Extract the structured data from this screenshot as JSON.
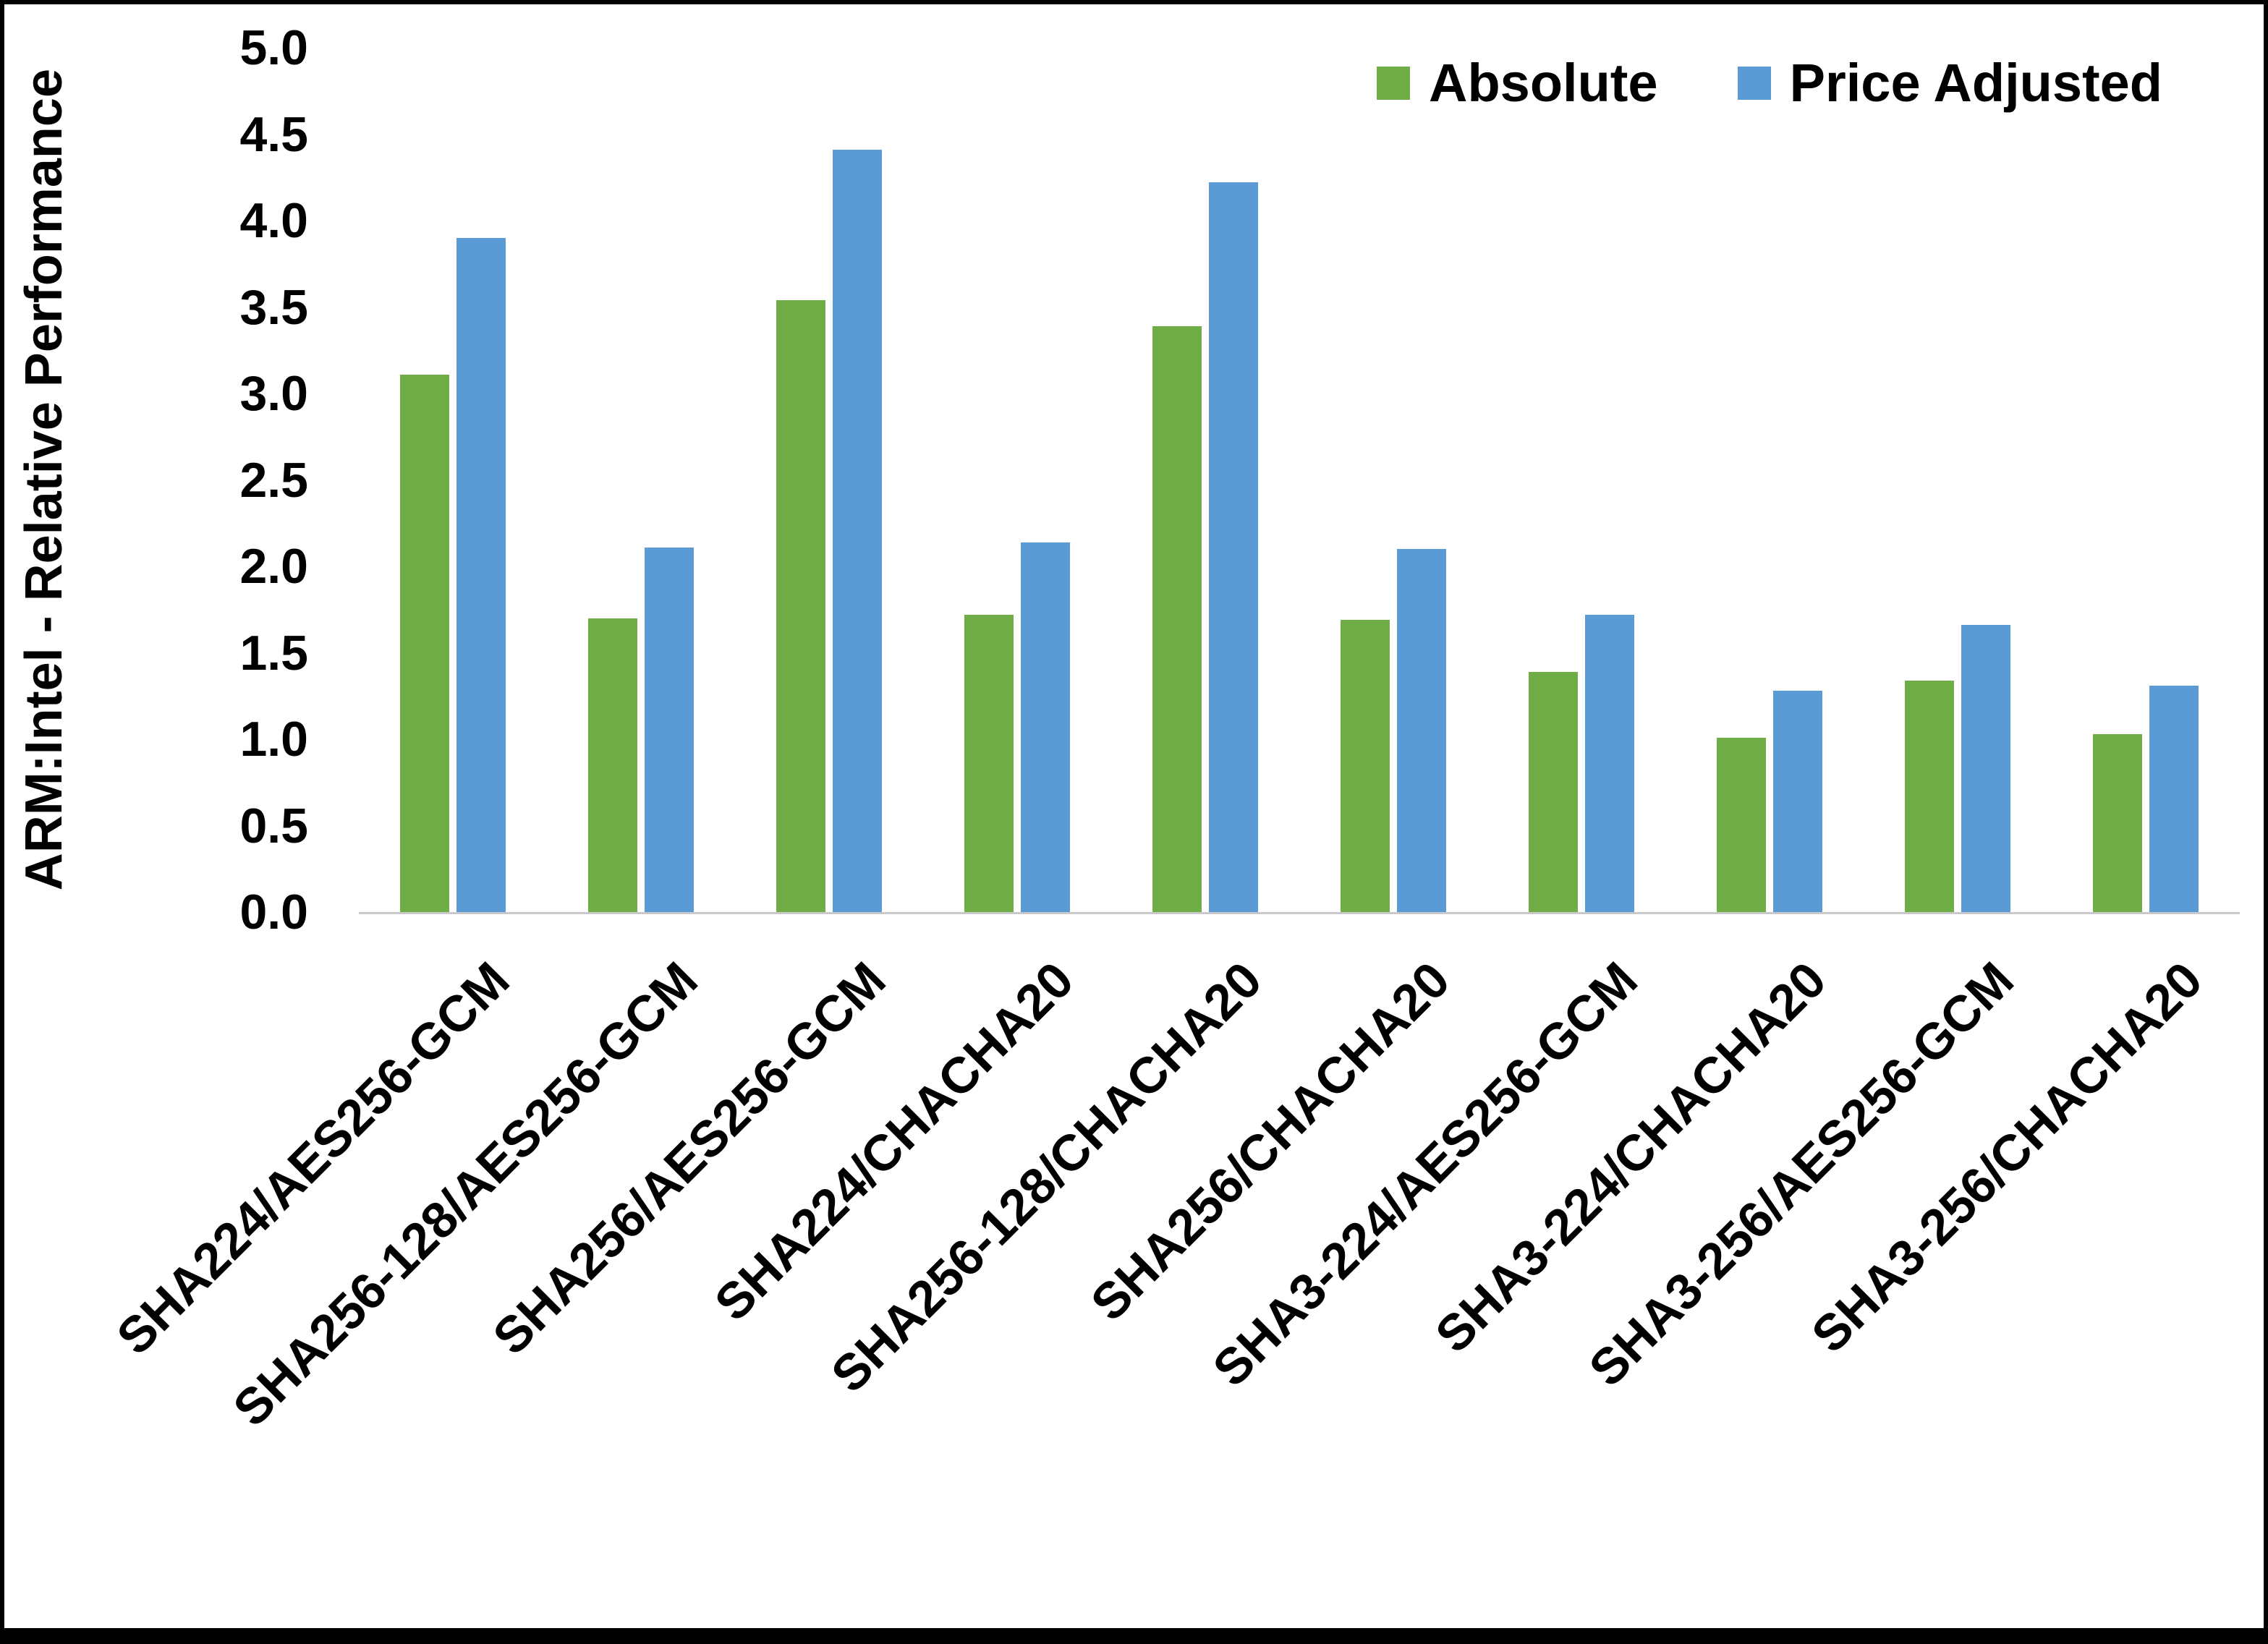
{
  "chart_data": {
    "type": "bar",
    "title": "",
    "xlabel": "",
    "ylabel": "ARM:Intel - Relative Performance",
    "ylim": [
      0,
      5
    ],
    "ytick_step": 0.5,
    "grid": false,
    "legend_position": "top-right",
    "categories": [
      "SHA224/AES256-GCM",
      "SHA256-128/AES256-GCM",
      "SHA256/AES256-GCM",
      "SHA224/CHACHA20",
      "SHA256-128/CHACHA20",
      "SHA256/CHACHA20",
      "SHA3-224/AES256-GCM",
      "SHA3-224/CHACHA20",
      "SHA3-256/AES256-GCM",
      "SHA3-256/CHACHA20"
    ],
    "series": [
      {
        "name": "Absolute",
        "color": "#70AD47",
        "values": [
          3.11,
          1.7,
          3.54,
          1.72,
          3.39,
          1.69,
          1.39,
          1.01,
          1.34,
          1.03
        ]
      },
      {
        "name": "Price Adjusted",
        "color": "#5B9BD5",
        "values": [
          3.9,
          2.11,
          4.41,
          2.14,
          4.22,
          2.1,
          1.72,
          1.28,
          1.66,
          1.31
        ]
      }
    ]
  }
}
